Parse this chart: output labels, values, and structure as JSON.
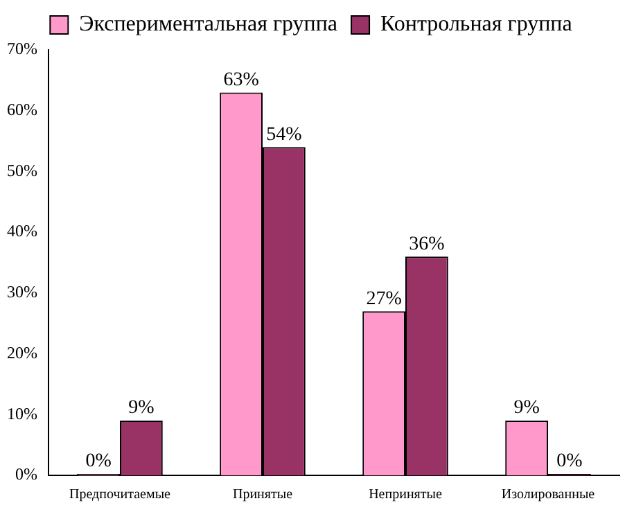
{
  "chart_data": {
    "type": "bar",
    "categories": [
      "Предпочитаемые",
      "Принятые",
      "Непринятые",
      "Изолированные"
    ],
    "series": [
      {
        "name": "Экспериментальная группа",
        "color": "#ff99cc",
        "values": [
          0,
          63,
          27,
          9
        ],
        "value_labels": [
          "0%",
          "63%",
          "27%",
          "9%"
        ]
      },
      {
        "name": "Контрольная группа",
        "color": "#993366",
        "values": [
          9,
          54,
          36,
          0
        ],
        "value_labels": [
          "9%",
          "54%",
          "36%",
          "0%"
        ]
      }
    ],
    "ylim": [
      0,
      70
    ],
    "yticks": [
      {
        "value": 0,
        "label": "0%"
      },
      {
        "value": 10,
        "label": "10%"
      },
      {
        "value": 20,
        "label": "20%"
      },
      {
        "value": 30,
        "label": "30%"
      },
      {
        "value": 40,
        "label": "40%"
      },
      {
        "value": 50,
        "label": "50%"
      },
      {
        "value": 60,
        "label": "60%"
      },
      {
        "value": 70,
        "label": "70%"
      }
    ],
    "grid": false,
    "legend": "top"
  }
}
